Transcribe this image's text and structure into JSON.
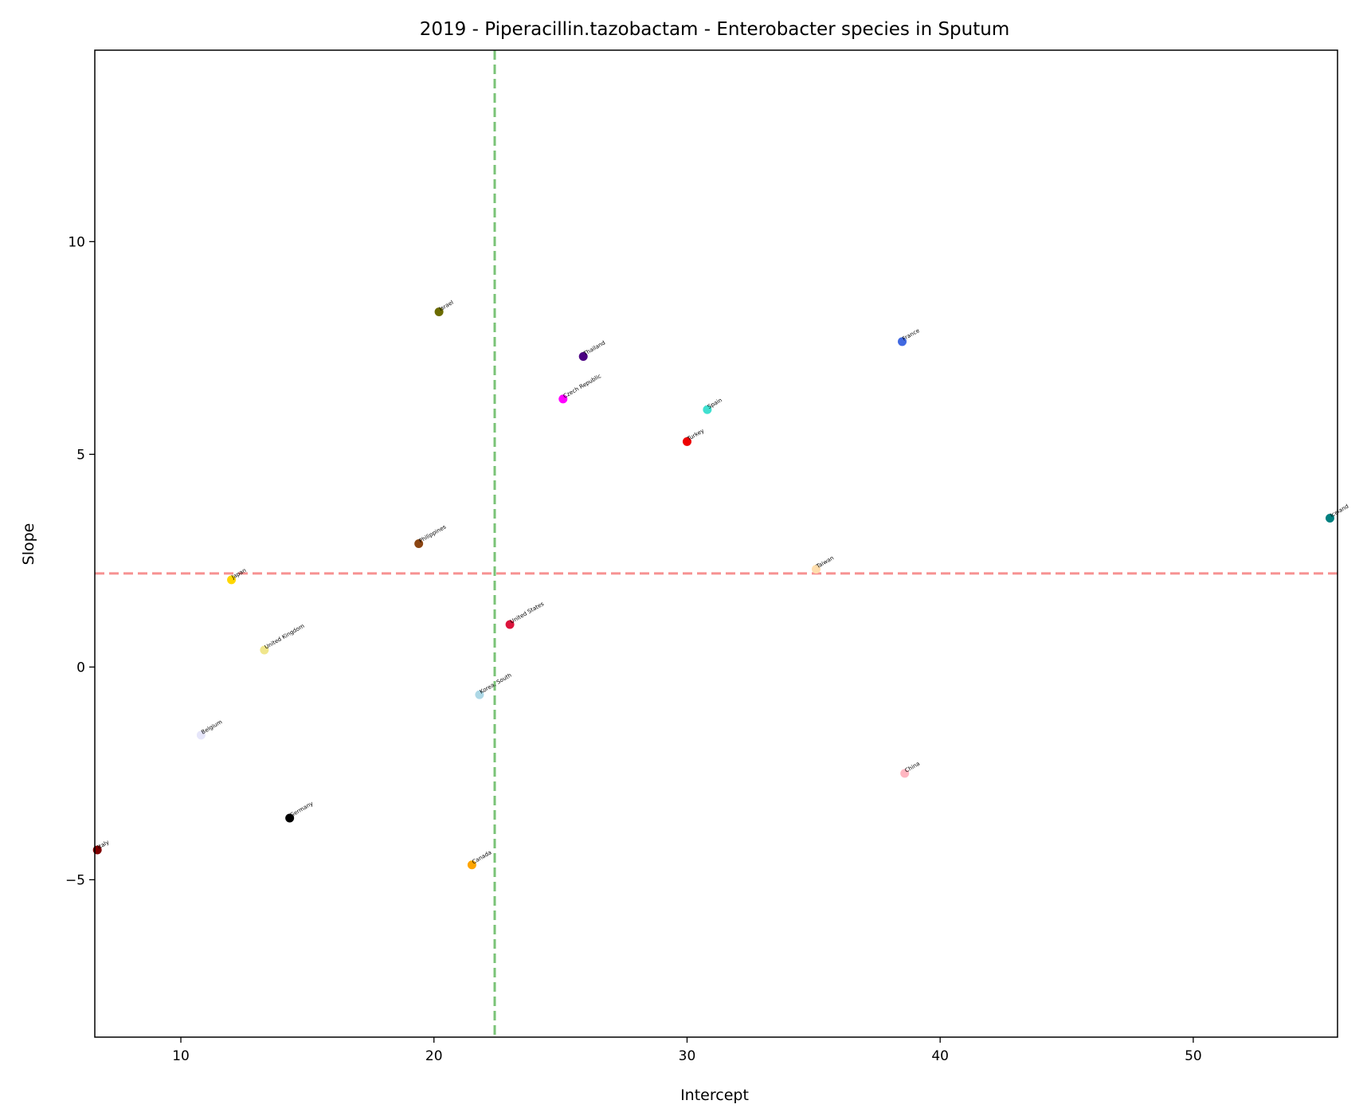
{
  "chart_data": {
    "type": "scatter",
    "title": "2019 - Piperacillin.tazobactam - Enterobacter species in Sputum",
    "xlabel": "Intercept",
    "ylabel": "Slope",
    "xlim": [
      6.6,
      55.7
    ],
    "ylim": [
      -8.7,
      14.5
    ],
    "xticks": [
      10,
      20,
      30,
      40,
      50
    ],
    "yticks": [
      -5,
      0,
      5,
      10
    ],
    "ytick_labels": [
      "−5",
      "0",
      "5",
      "10"
    ],
    "reference_lines": [
      {
        "orientation": "vertical",
        "value": 22.4,
        "color": "#4daf4a",
        "style": "dashed"
      },
      {
        "orientation": "horizontal",
        "value": 2.2,
        "color": "#f46d6d",
        "style": "dashed"
      }
    ],
    "grid": false,
    "points": [
      {
        "label": "Israel",
        "x": 20.2,
        "y": 8.35,
        "color": "#6b6b00"
      },
      {
        "label": "Thailand",
        "x": 25.9,
        "y": 7.3,
        "color": "#4b0082"
      },
      {
        "label": "France",
        "x": 38.5,
        "y": 7.65,
        "color": "#4169e1"
      },
      {
        "label": "Czech Republic",
        "x": 25.1,
        "y": 6.3,
        "color": "#ff00ff"
      },
      {
        "label": "Spain",
        "x": 30.8,
        "y": 6.05,
        "color": "#40e0d0"
      },
      {
        "label": "Turkey",
        "x": 30.0,
        "y": 5.3,
        "color": "#ee0000"
      },
      {
        "label": "Iceland",
        "x": 55.4,
        "y": 3.5,
        "color": "#008080"
      },
      {
        "label": "Philippines",
        "x": 19.4,
        "y": 2.9,
        "color": "#8b4513"
      },
      {
        "label": "Taiwan",
        "x": 35.1,
        "y": 2.3,
        "color": "#ffdead"
      },
      {
        "label": "Japan",
        "x": 12.0,
        "y": 2.05,
        "color": "#ffd700"
      },
      {
        "label": "United States",
        "x": 23.0,
        "y": 1.0,
        "color": "#dc143c"
      },
      {
        "label": "United Kingdom",
        "x": 13.3,
        "y": 0.4,
        "color": "#f0e68c"
      },
      {
        "label": "Korea, South",
        "x": 21.8,
        "y": -0.65,
        "color": "#add8e6"
      },
      {
        "label": "Belgium",
        "x": 10.8,
        "y": -1.6,
        "color": "#e6e6fa"
      },
      {
        "label": "China",
        "x": 38.6,
        "y": -2.5,
        "color": "#ffb6c1"
      },
      {
        "label": "Germany",
        "x": 14.3,
        "y": -3.55,
        "color": "#000000"
      },
      {
        "label": "Italy",
        "x": 6.7,
        "y": -4.3,
        "color": "#800000"
      },
      {
        "label": "Canada",
        "x": 21.5,
        "y": -4.65,
        "color": "#ffa500"
      }
    ]
  }
}
